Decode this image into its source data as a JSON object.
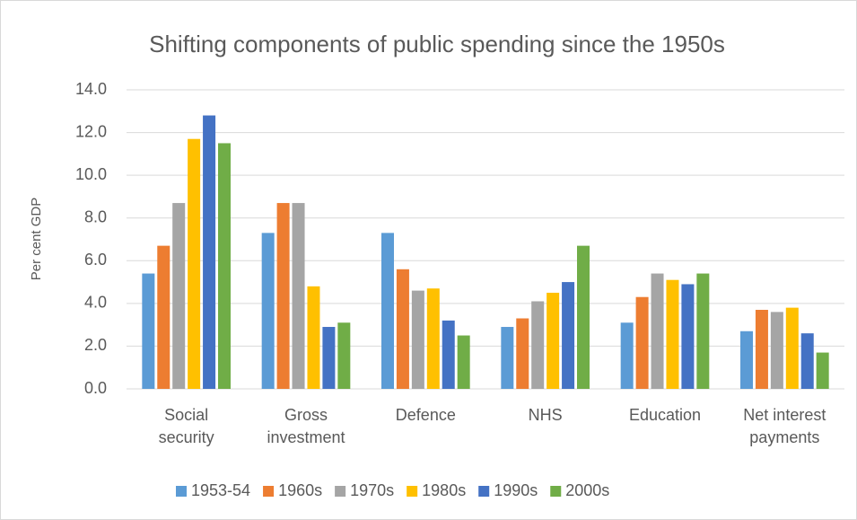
{
  "chart_data": {
    "type": "bar",
    "title": "Shifting components of public spending since the 1950s",
    "ylabel": "Per cent GDP",
    "categories": [
      "Social security",
      "Gross investment",
      "Defence",
      "NHS",
      "Education",
      "Net interest payments"
    ],
    "series": [
      {
        "name": "1953-54",
        "color": "#5b9bd5",
        "values": [
          5.4,
          7.3,
          7.3,
          2.9,
          3.1,
          2.7
        ]
      },
      {
        "name": "1960s",
        "color": "#ed7d31",
        "values": [
          6.7,
          8.7,
          5.6,
          3.3,
          4.3,
          3.7
        ]
      },
      {
        "name": "1970s",
        "color": "#a5a5a5",
        "values": [
          8.7,
          8.7,
          4.6,
          4.1,
          5.4,
          3.6
        ]
      },
      {
        "name": "1980s",
        "color": "#ffc000",
        "values": [
          11.7,
          4.8,
          4.7,
          4.5,
          5.1,
          3.8
        ]
      },
      {
        "name": "1990s",
        "color": "#4472c4",
        "values": [
          12.8,
          2.9,
          3.2,
          5.0,
          4.9,
          2.6
        ]
      },
      {
        "name": "2000s",
        "color": "#70ad47",
        "values": [
          11.5,
          3.1,
          2.5,
          6.7,
          5.4,
          1.7
        ]
      }
    ],
    "ylim": [
      0,
      14
    ],
    "yticks": [
      {
        "value": 0,
        "label": "0.0"
      },
      {
        "value": 2,
        "label": "2.0"
      },
      {
        "value": 4,
        "label": "4.0"
      },
      {
        "value": 6,
        "label": "6.0"
      },
      {
        "value": 8,
        "label": "8.0"
      },
      {
        "value": 10,
        "label": "10.0"
      },
      {
        "value": 12,
        "label": "12.0"
      },
      {
        "value": 14,
        "label": "14.0"
      }
    ],
    "grid": true,
    "legend": "bottom"
  }
}
